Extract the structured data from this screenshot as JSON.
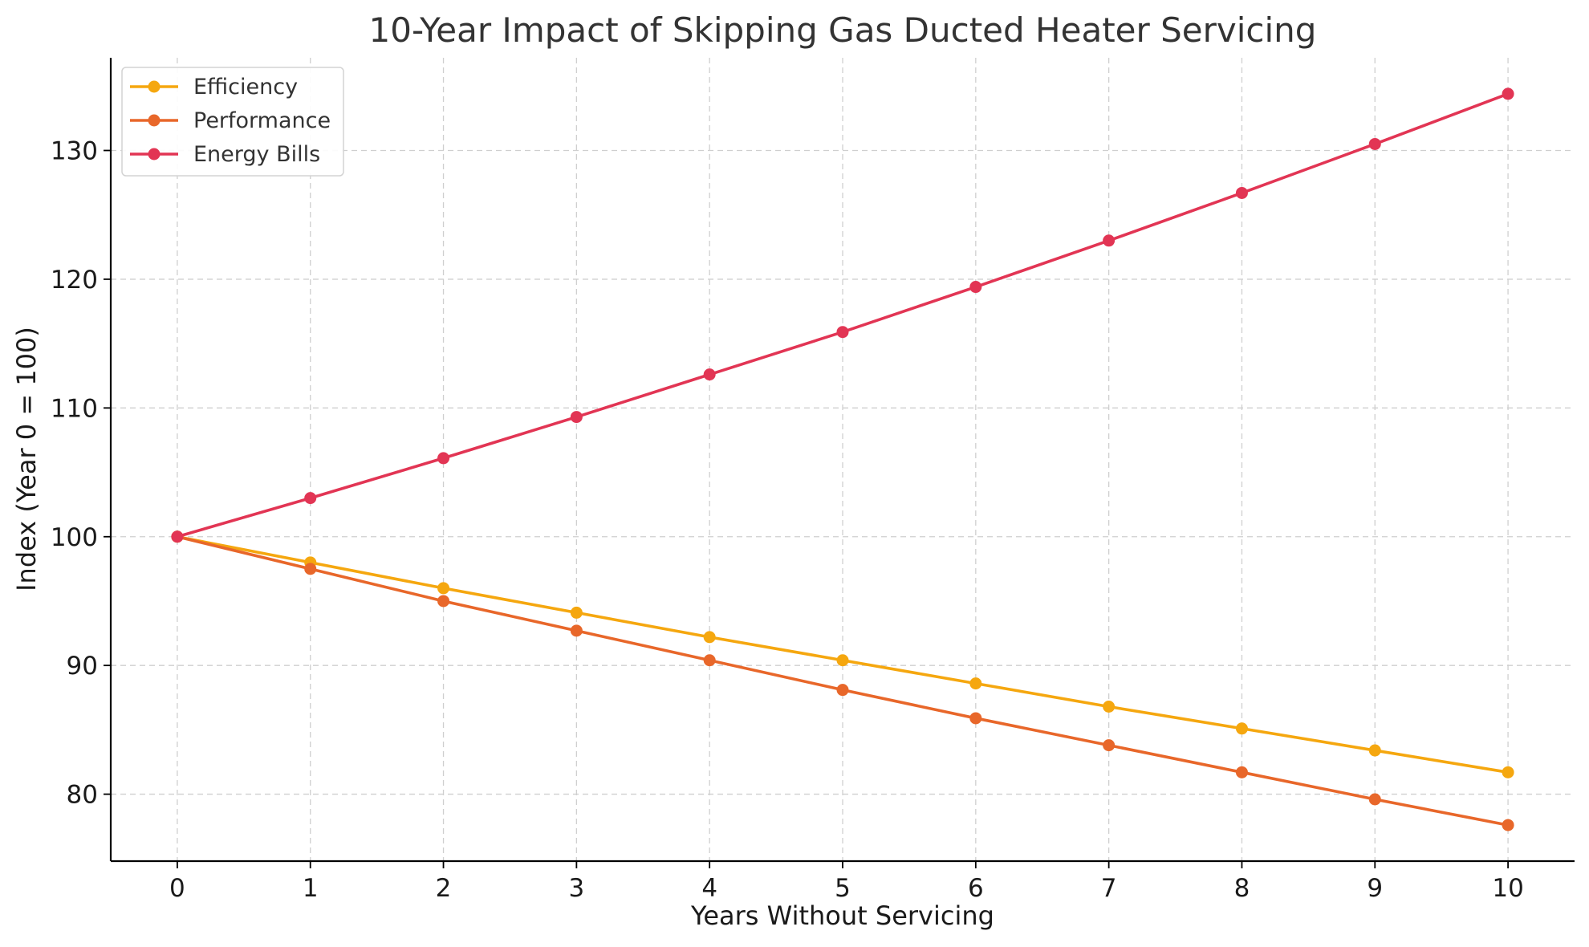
{
  "chart_data": {
    "type": "line",
    "title": "10-Year Impact of Skipping Gas Ducted Heater Servicing",
    "xlabel": "Years Without Servicing",
    "ylabel": "Index (Year 0 = 100)",
    "x": [
      0,
      1,
      2,
      3,
      4,
      5,
      6,
      7,
      8,
      9,
      10
    ],
    "xlim": [
      -0.5,
      10.5
    ],
    "ylim": [
      74.8,
      137.2
    ],
    "xticks": [
      0,
      1,
      2,
      3,
      4,
      5,
      6,
      7,
      8,
      9,
      10
    ],
    "yticks": [
      80,
      90,
      100,
      110,
      120,
      130
    ],
    "grid": true,
    "legend_position": "top-left",
    "series": [
      {
        "name": "Efficiency",
        "color": "#f5a70f",
        "values": [
          100.0,
          98.0,
          96.0,
          94.1,
          92.2,
          90.4,
          88.6,
          86.8,
          85.1,
          83.4,
          81.7
        ]
      },
      {
        "name": "Performance",
        "color": "#e8672a",
        "values": [
          100.0,
          97.5,
          95.0,
          92.7,
          90.4,
          88.1,
          85.9,
          83.8,
          81.7,
          79.6,
          77.6
        ]
      },
      {
        "name": "Energy Bills",
        "color": "#e23554",
        "values": [
          100.0,
          103.0,
          106.1,
          109.3,
          112.6,
          115.9,
          119.4,
          123.0,
          126.7,
          130.5,
          134.4
        ]
      }
    ]
  }
}
